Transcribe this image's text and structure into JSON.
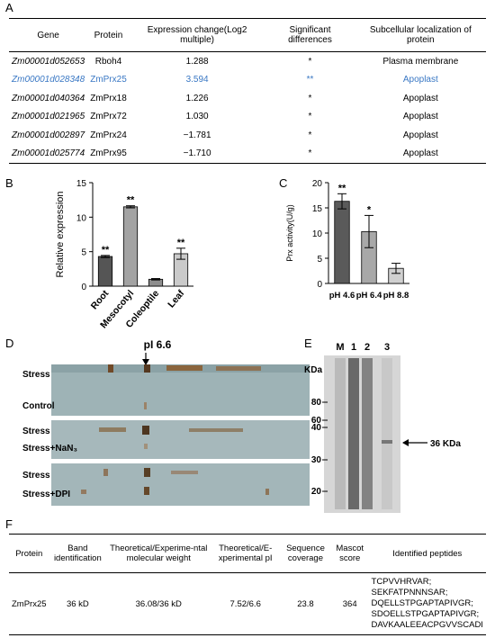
{
  "panel_labels": [
    "A",
    "B",
    "C",
    "D",
    "E",
    "F"
  ],
  "table_a": {
    "headers": [
      "Gene",
      "Protein",
      "Expression change(Log2 multiple)",
      "Significant differences",
      "Subcellular localization of protein"
    ],
    "rows": [
      {
        "cells": [
          "Zm00001d052653",
          "Rboh4",
          "1.288",
          "*",
          "Plasma membrane"
        ]
      },
      {
        "cells": [
          "Zm00001d028348",
          "ZmPrx25",
          "3.594",
          "**",
          "Apoplast"
        ],
        "color": "#3a78c4"
      },
      {
        "cells": [
          "Zm00001d040364",
          "ZmPrx18",
          "1.226",
          "*",
          "Apoplast"
        ]
      },
      {
        "cells": [
          "Zm00001d021965",
          "ZmPrx72",
          "1.030",
          "*",
          "Apoplast"
        ]
      },
      {
        "cells": [
          "Zm00001d002897",
          "ZmPrx24",
          "−1.781",
          "*",
          "Apoplast"
        ]
      },
      {
        "cells": [
          "Zm00001d025774",
          "ZmPrx95",
          "−1.710",
          "*",
          "Apoplast"
        ]
      }
    ]
  },
  "chart_data": [
    {
      "type": "bar",
      "ylabel": "Relative expression",
      "categories": [
        "Root",
        "Mesocotyl",
        "Coleoptile",
        "Leaf"
      ],
      "values": [
        4.3,
        11.5,
        1.0,
        4.7
      ],
      "errors": [
        0.15,
        0.15,
        0.1,
        0.8
      ],
      "annotations": [
        "**",
        "**",
        null,
        "**"
      ],
      "colors": [
        "#555555",
        "#a3a3a3",
        "#8e8e8e",
        "#cacaca"
      ],
      "ylim": [
        0,
        15
      ],
      "yticks": [
        0,
        5,
        10,
        15
      ]
    },
    {
      "type": "bar",
      "ylabel": "Prx activity(U/g)",
      "categories": [
        "pH 4.6",
        "pH 6.4",
        "pH 8.8"
      ],
      "values": [
        16.3,
        10.3,
        3.0
      ],
      "errors": [
        1.5,
        3.2,
        1.0
      ],
      "annotations": [
        "**",
        "*",
        null
      ],
      "colors": [
        "#5a5a5a",
        "#a8a8a8",
        "#d0d0d0"
      ],
      "ylim": [
        0,
        20
      ],
      "yticks": [
        0,
        5,
        10,
        15,
        20
      ]
    }
  ],
  "gel_d": {
    "marker": "pI 6.6",
    "rows": [
      "Stress",
      "Control",
      "Stress",
      "Stress+NaN₃",
      "Stress",
      "Stress+DPI"
    ]
  },
  "gel_e": {
    "lanes": [
      "M",
      "1",
      "2",
      "3"
    ],
    "unit": "KDa",
    "markers": [
      "80",
      "60",
      "40",
      "30",
      "20"
    ],
    "band": "36 KDa"
  },
  "table_f": {
    "headers": [
      "Protein",
      "Band identification",
      "Theoretical/Experime-ntal molecular weight",
      "Theoretical/E-xperimental pI",
      "Sequence coverage",
      "Mascot score",
      "Identified peptides"
    ],
    "rows": [
      {
        "cells": [
          "ZmPrx25",
          "36 kD",
          "36.08/36 kD",
          "7.52/6.6",
          "23.8",
          "364"
        ],
        "peptides": [
          "TCPVVHRVAR;",
          "SEKFATPNNNSAR;",
          "DQELLSTPGAPTAPIVGR;",
          "SDOELLSTPGAPTAPIVGR;",
          "DAVKAALEEACPGVVSCADI"
        ]
      }
    ]
  }
}
